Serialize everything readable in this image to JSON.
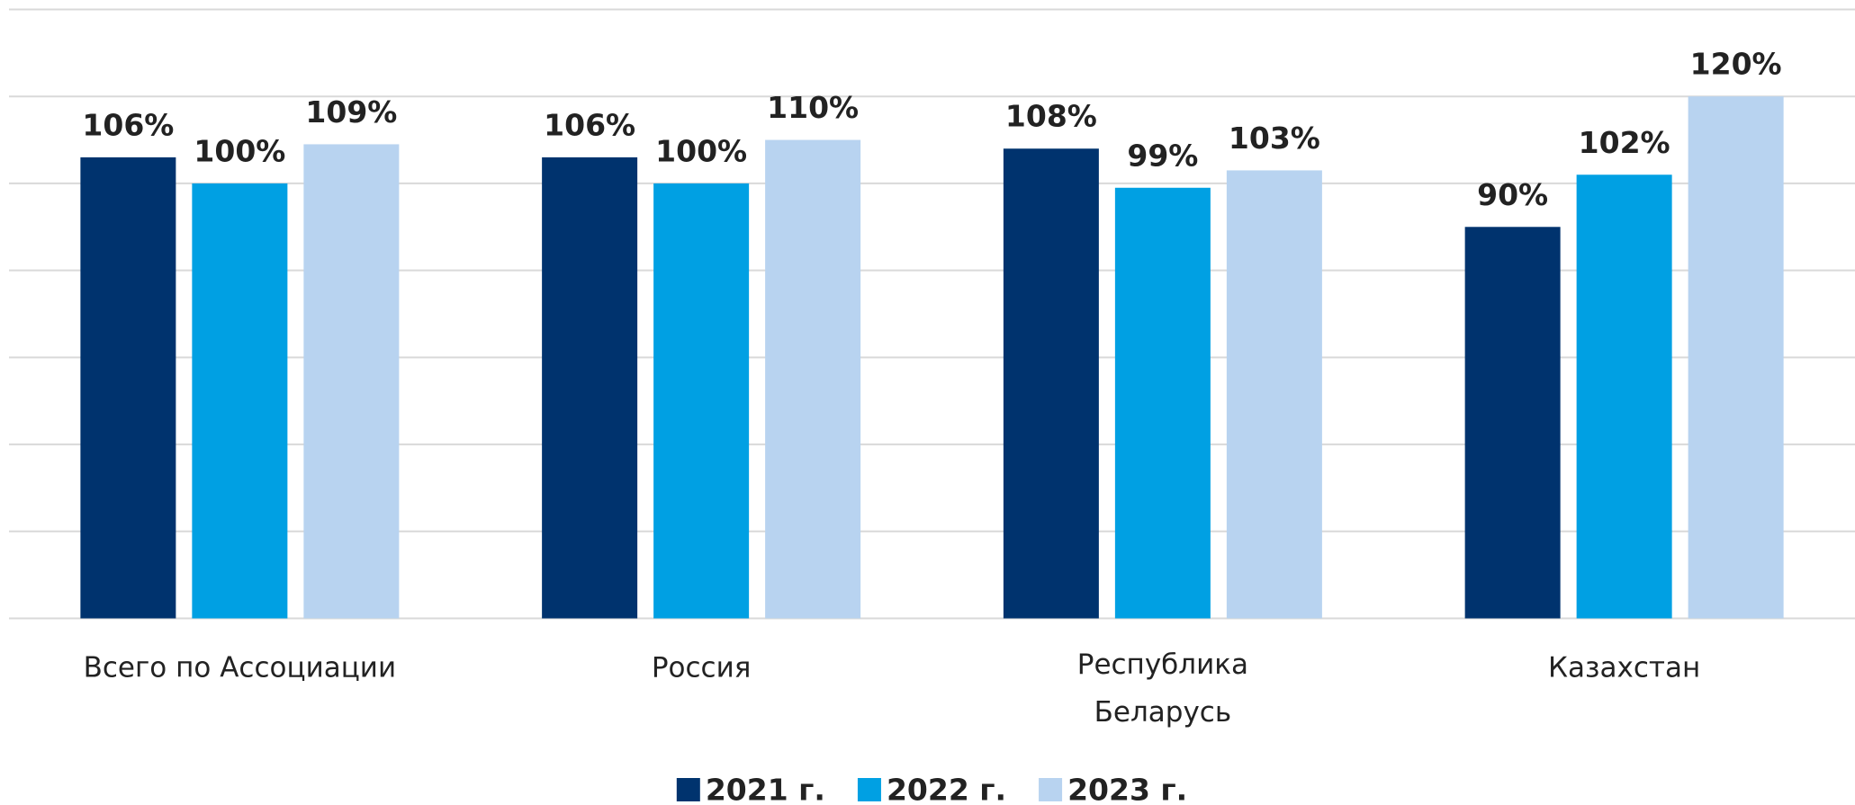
{
  "chart_data": {
    "type": "bar",
    "categories": [
      "Всего по Ассоциации",
      "Россия",
      "Республика\nБеларусь",
      "Казахстан"
    ],
    "series": [
      {
        "name": "2021 г.",
        "color": "#00336e",
        "values": [
          106,
          106,
          108,
          90
        ],
        "value_labels": [
          "106%",
          "106%",
          "108%",
          "90%"
        ]
      },
      {
        "name": "2022 г.",
        "color": "#00a0e3",
        "values": [
          100,
          100,
          99,
          102
        ],
        "value_labels": [
          "100%",
          "100%",
          "99%",
          "102%"
        ]
      },
      {
        "name": "2023 г.",
        "color": "#b8d3f0",
        "values": [
          109,
          110,
          103,
          120
        ],
        "value_labels": [
          "109%",
          "110%",
          "103%",
          "120%"
        ]
      }
    ],
    "ylim": [
      0,
      140
    ],
    "yticks": [
      0,
      20,
      40,
      60,
      80,
      100,
      120,
      140
    ],
    "grid": true,
    "legend": "bottom"
  }
}
